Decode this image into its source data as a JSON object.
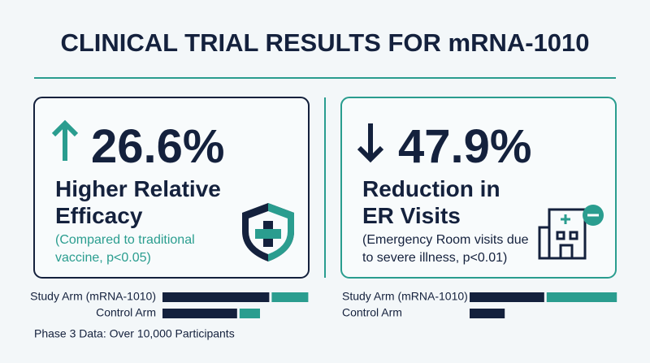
{
  "title": "CLINICAL TRIAL RESULTS FOR mRNA-1010",
  "panels": [
    {
      "stat": "26.6%",
      "headline": [
        "Higher Relative",
        "Efficacy"
      ],
      "note": [
        "(Compared to traditional",
        "vaccine, p<0.05)"
      ],
      "bars": {
        "type": "bar",
        "categories": [
          "Study Arm (mRNA-1010)",
          "Control Arm"
        ],
        "xlim": [
          0,
          100
        ],
        "series": [
          {
            "color": "#14213d",
            "values": [
              73,
              51
            ]
          },
          {
            "color": "#2a9d8f",
            "values": [
              25,
              14
            ]
          }
        ]
      }
    },
    {
      "stat": "47.9%",
      "headline": [
        "Reduction in",
        "ER Visits"
      ],
      "note": [
        "(Emergency Room visits due",
        "to severe illness, p<0.01)"
      ],
      "bars": {
        "type": "bar",
        "categories": [
          "Study Arm (mRNA-1010)",
          "Control Arm"
        ],
        "xlim": [
          0,
          100
        ],
        "series": [
          {
            "color": "#14213d",
            "values": [
              51,
              24
            ]
          },
          {
            "color": "#2a9d8f",
            "values": [
              48,
              null
            ]
          }
        ]
      }
    }
  ],
  "footer": "Phase 3 Data: Over 10,000 Participants"
}
